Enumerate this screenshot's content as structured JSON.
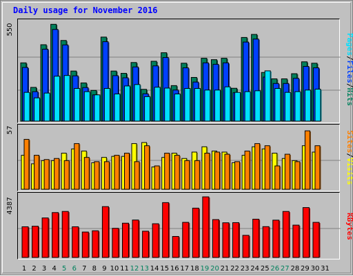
{
  "title": "Daily usage for November 2016",
  "colors": {
    "hits": "#00805c",
    "files": "#0040ff",
    "pages": "#00e0ff",
    "visits": "#ffff00",
    "sites": "#ff8000",
    "kbytes": "#ff0000",
    "weekend_day": "#00805c",
    "weekday_day": "#000000",
    "gridline": "#808080"
  },
  "labels": {
    "top_max": "550",
    "mid_max": "57",
    "bottom_max": "4387",
    "top_right": [
      "Pages",
      "/",
      "Files",
      "/",
      "Hits"
    ],
    "mid_right": [
      "Sites",
      "/",
      "Visits"
    ],
    "bottom_right": "KBytes"
  },
  "chart_data": [
    {
      "type": "bar",
      "title": "Daily usage for November 2016",
      "ymax": 550,
      "categories": [
        "1",
        "2",
        "3",
        "4",
        "5",
        "6",
        "7",
        "8",
        "9",
        "10",
        "11",
        "12",
        "13",
        "14",
        "15",
        "16",
        "17",
        "18",
        "19",
        "20",
        "21",
        "22",
        "23",
        "24",
        "25",
        "26",
        "27",
        "28",
        "29",
        "30",
        "31"
      ],
      "weekend_days": [
        "5",
        "6",
        "12",
        "13",
        "19",
        "20",
        "26",
        "27"
      ],
      "series": [
        {
          "name": "Hits",
          "values": [
            328,
            190,
            430,
            545,
            454,
            282,
            215,
            173,
            473,
            282,
            269,
            330,
            179,
            337,
            385,
            200,
            326,
            246,
            354,
            346,
            354,
            185,
            471,
            488,
            274,
            238,
            238,
            267,
            334,
            326,
            0
          ]
        },
        {
          "name": "Files",
          "values": [
            302,
            166,
            405,
            516,
            429,
            255,
            189,
            148,
            447,
            256,
            244,
            305,
            154,
            311,
            358,
            175,
            300,
            220,
            328,
            320,
            328,
            160,
            445,
            462,
            248,
            212,
            212,
            241,
            308,
            300,
            0
          ]
        },
        {
          "name": "Pages",
          "values": [
            162,
            131,
            158,
            253,
            257,
            184,
            166,
            148,
            184,
            153,
            198,
            206,
            138,
            191,
            186,
            153,
            184,
            184,
            175,
            175,
            193,
            162,
            166,
            171,
            283,
            184,
            162,
            166,
            175,
            180,
            0
          ]
        }
      ]
    },
    {
      "type": "bar",
      "ymax": 57,
      "categories": [
        "1",
        "2",
        "3",
        "4",
        "5",
        "6",
        "7",
        "8",
        "9",
        "10",
        "11",
        "12",
        "13",
        "14",
        "15",
        "16",
        "17",
        "18",
        "19",
        "20",
        "21",
        "22",
        "23",
        "24",
        "25",
        "26",
        "27",
        "28",
        "29",
        "30",
        "31"
      ],
      "series": [
        {
          "name": "Visits",
          "values": [
            32,
            24,
            27,
            27,
            34,
            38,
            36,
            25,
            30,
            31,
            31,
            43,
            44,
            21,
            30,
            34,
            29,
            35,
            40,
            36,
            35,
            25,
            32,
            40,
            38,
            34,
            29,
            27,
            41,
            35,
            0
          ]
        },
        {
          "name": "Sites",
          "values": [
            47,
            32,
            28,
            29,
            27,
            43,
            30,
            26,
            26,
            32,
            34,
            26,
            41,
            22,
            34,
            32,
            27,
            27,
            34,
            35,
            33,
            26,
            36,
            43,
            41,
            22,
            33,
            26,
            55,
            41,
            0
          ]
        }
      ]
    },
    {
      "type": "bar",
      "ymax": 4387,
      "categories": [
        "1",
        "2",
        "3",
        "4",
        "5",
        "6",
        "7",
        "8",
        "9",
        "10",
        "11",
        "12",
        "13",
        "14",
        "15",
        "16",
        "17",
        "18",
        "19",
        "20",
        "21",
        "22",
        "23",
        "24",
        "25",
        "26",
        "27",
        "28",
        "29",
        "30",
        "31"
      ],
      "series": [
        {
          "name": "KBytes",
          "values": [
            2220,
            2260,
            2860,
            3250,
            3330,
            2220,
            1840,
            1930,
            3680,
            2110,
            2480,
            2710,
            1900,
            2440,
            3970,
            1520,
            2540,
            3570,
            4387,
            2740,
            2510,
            2520,
            1600,
            2770,
            2230,
            2700,
            3330,
            2340,
            3610,
            2540,
            0
          ]
        }
      ]
    }
  ]
}
